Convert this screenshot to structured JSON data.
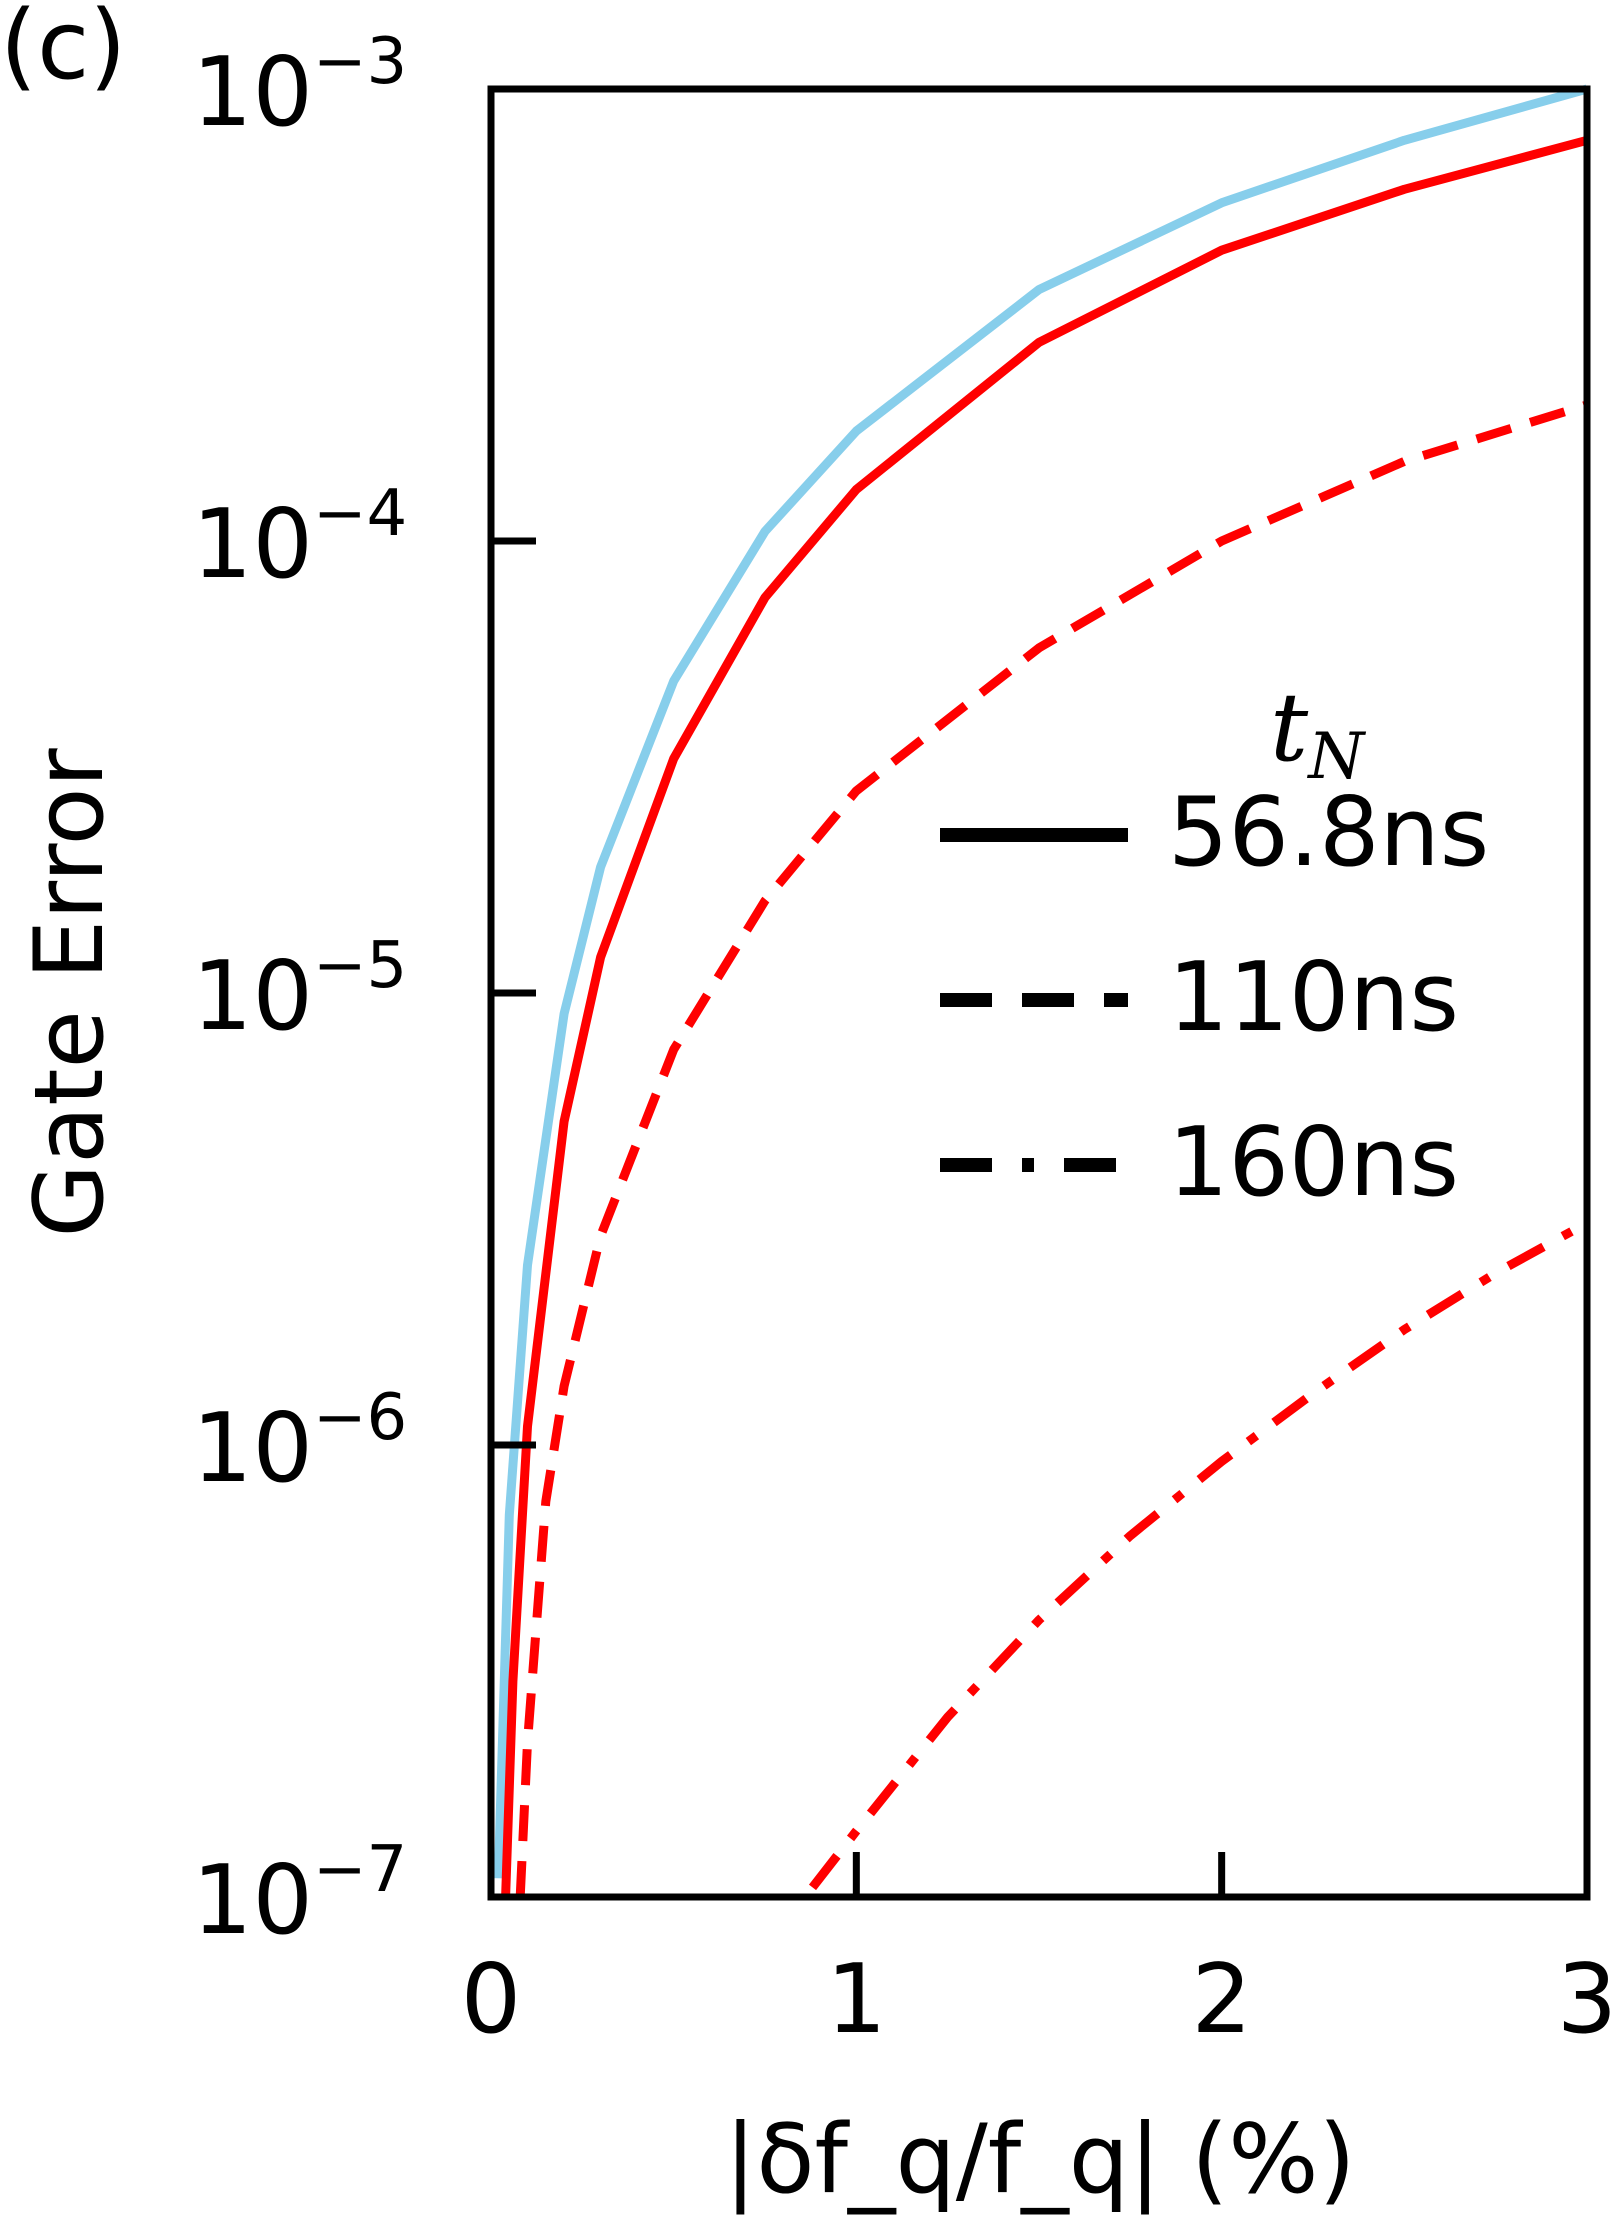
{
  "panel_label": "(c)",
  "chart_data": {
    "type": "line",
    "title": "",
    "xlabel": "|δf_q/f_q| (%)",
    "ylabel": "Gate Error",
    "xlim": [
      0,
      3
    ],
    "ylim": [
      1e-07,
      0.001
    ],
    "yscale": "log",
    "grid": false,
    "x_ticks": [
      "0",
      "1",
      "2",
      "3"
    ],
    "y_ticks": [
      {
        "base": "10",
        "exp": "−7",
        "value": 1e-07
      },
      {
        "base": "10",
        "exp": "−6",
        "value": 1e-06
      },
      {
        "base": "10",
        "exp": "−5",
        "value": 1e-05
      },
      {
        "base": "10",
        "exp": "−4",
        "value": 0.0001
      },
      {
        "base": "10",
        "exp": "−3",
        "value": 0.001
      }
    ],
    "legend": {
      "title": "t_N",
      "placement": "right",
      "entries": [
        "56.8ns",
        "110ns",
        "160ns"
      ]
    },
    "series": [
      {
        "color": "#87ceeb",
        "dash": "solid",
        "x": [
          0.02,
          0.05,
          0.1,
          0.2,
          0.3,
          0.5,
          0.75,
          1.0,
          1.5,
          2.0,
          2.5,
          3.0
        ],
        "values": [
          1.1e-07,
          7e-07,
          2.5e-06,
          9e-06,
          1.9e-05,
          4.9e-05,
          0.000105,
          0.000175,
          0.00036,
          0.00056,
          0.00077,
          0.001
        ]
      },
      {
        "color": "#ff0000",
        "dash": "solid",
        "name": "56.8ns",
        "x": [
          0.04,
          0.06,
          0.1,
          0.2,
          0.3,
          0.5,
          0.75,
          1.0,
          1.5,
          2.0,
          2.5,
          3.0
        ],
        "values": [
          1e-07,
          3e-07,
          1.1e-06,
          5.2e-06,
          1.2e-05,
          3.3e-05,
          7.5e-05,
          0.00013,
          0.000275,
          0.00044,
          0.0006,
          0.00077
        ]
      },
      {
        "color": "#ff0000",
        "dash": "dashed",
        "name": "110ns",
        "x": [
          0.08,
          0.1,
          0.15,
          0.2,
          0.3,
          0.5,
          0.75,
          1.0,
          1.5,
          2.0,
          2.5,
          3.0
        ],
        "values": [
          1e-07,
          2.2e-07,
          7.5e-07,
          1.35e-06,
          2.9e-06,
          7.5e-06,
          1.6e-05,
          2.8e-05,
          5.8e-05,
          0.0001,
          0.00015,
          0.0002
        ]
      },
      {
        "color": "#ff0000",
        "dash": "dashdot",
        "name": "160ns",
        "x": [
          0.88,
          1.0,
          1.25,
          1.5,
          1.75,
          2.0,
          2.25,
          2.5,
          2.75,
          3.0
        ],
        "values": [
          1.05e-07,
          1.4e-07,
          2.5e-07,
          4.1e-07,
          6.3e-07,
          9.2e-07,
          1.3e-06,
          1.8e-06,
          2.4e-06,
          3.1e-06
        ]
      }
    ]
  }
}
